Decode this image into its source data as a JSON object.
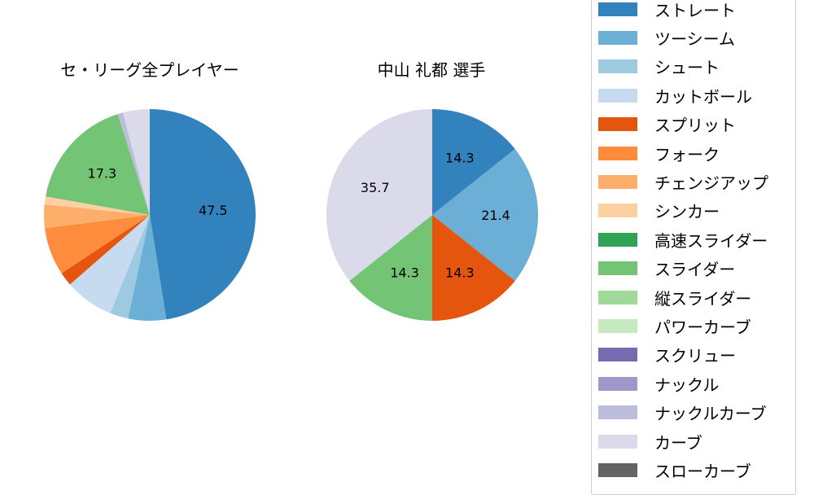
{
  "chart_data": [
    {
      "type": "pie",
      "title": "セ・リーグ全プレイヤー",
      "categories": [
        "ストレート",
        "ツーシーム",
        "シュート",
        "カットボール",
        "スプリット",
        "フォーク",
        "チェンジアップ",
        "シンカー",
        "高速スライダー",
        "スライダー",
        "縦スライダー",
        "パワーカーブ",
        "スクリュー",
        "ナックル",
        "ナックルカーブ",
        "カーブ",
        "スローカーブ"
      ],
      "values": [
        47.5,
        5.8,
        2.8,
        7.5,
        2.1,
        7.3,
        3.6,
        1.2,
        0.0,
        17.3,
        0.0,
        0.0,
        0.0,
        0.0,
        0.8,
        4.1,
        0.0
      ],
      "labels_shown": {
        "ストレート": "47.5",
        "スライダー": "17.3"
      },
      "start_angle": 90,
      "direction": "clockwise"
    },
    {
      "type": "pie",
      "title": "中山 礼都  選手",
      "categories": [
        "ストレート",
        "ツーシーム",
        "スプリット",
        "スライダー",
        "カーブ"
      ],
      "values": [
        14.3,
        21.4,
        14.3,
        14.3,
        35.7
      ],
      "labels_shown": {
        "ストレート": "14.3",
        "ツーシーム": "21.4",
        "スプリット": "14.3",
        "スライダー": "14.3",
        "カーブ": "35.7"
      },
      "start_angle": 90,
      "direction": "clockwise"
    }
  ],
  "titles": {
    "left": "セ・リーグ全プレイヤー",
    "right": "中山 礼都  選手"
  },
  "legend": [
    {
      "label": "ストレート",
      "color": "#3182bd"
    },
    {
      "label": "ツーシーム",
      "color": "#6baed6"
    },
    {
      "label": "シュート",
      "color": "#9ecae1"
    },
    {
      "label": "カットボール",
      "color": "#c6dbef"
    },
    {
      "label": "スプリット",
      "color": "#e6550d"
    },
    {
      "label": "フォーク",
      "color": "#fd8d3c"
    },
    {
      "label": "チェンジアップ",
      "color": "#fdae6b"
    },
    {
      "label": "シンカー",
      "color": "#fdd0a2"
    },
    {
      "label": "高速スライダー",
      "color": "#31a354"
    },
    {
      "label": "スライダー",
      "color": "#74c476"
    },
    {
      "label": "縦スライダー",
      "color": "#a1d99b"
    },
    {
      "label": "パワーカーブ",
      "color": "#c7e9c0"
    },
    {
      "label": "スクリュー",
      "color": "#756bb1"
    },
    {
      "label": "ナックル",
      "color": "#9e9ac8"
    },
    {
      "label": "ナックルカーブ",
      "color": "#bcbddc"
    },
    {
      "label": "カーブ",
      "color": "#dadaeb"
    },
    {
      "label": "スローカーブ",
      "color": "#636363"
    }
  ]
}
